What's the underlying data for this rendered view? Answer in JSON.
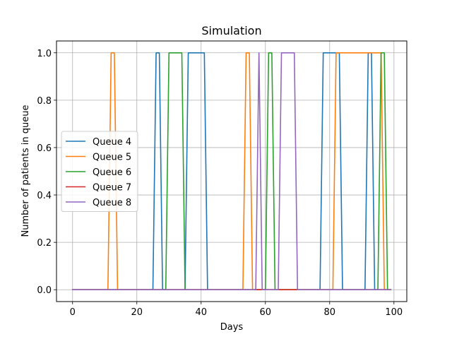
{
  "chart_data": {
    "type": "line",
    "title": "Simulation",
    "xlabel": "Days",
    "ylabel": "Number of patients in queue",
    "xlim": [
      -5,
      104
    ],
    "ylim": [
      -0.05,
      1.05
    ],
    "xticks": [
      0,
      20,
      40,
      60,
      80,
      100
    ],
    "yticks": [
      0.0,
      0.2,
      0.4,
      0.6,
      0.8,
      1.0
    ],
    "xtick_labels": [
      "0",
      "20",
      "40",
      "60",
      "80",
      "100"
    ],
    "ytick_labels": [
      "0.0",
      "0.2",
      "0.4",
      "0.6",
      "0.8",
      "1.0"
    ],
    "grid": true,
    "legend_position": "center-left",
    "series": [
      {
        "name": "Queue 4",
        "color": "#1f77b4",
        "x": [
          0,
          25,
          26,
          27,
          28,
          35,
          36,
          41,
          42,
          77,
          78,
          82,
          83,
          84,
          91,
          92,
          93,
          94,
          99
        ],
        "y": [
          0,
          0,
          1,
          1,
          0,
          0,
          1,
          1,
          0,
          0,
          1,
          1,
          1,
          0,
          0,
          1,
          1,
          0,
          0
        ]
      },
      {
        "name": "Queue 5",
        "color": "#ff7f0e",
        "x": [
          0,
          11,
          12,
          13,
          14,
          53,
          54,
          55,
          56,
          81,
          82,
          96,
          97,
          99
        ],
        "y": [
          0,
          0,
          1,
          1,
          0,
          0,
          1,
          1,
          0,
          0,
          1,
          1,
          0,
          0
        ]
      },
      {
        "name": "Queue 6",
        "color": "#2ca02c",
        "x": [
          0,
          29,
          30,
          33,
          34,
          35,
          60,
          61,
          62,
          63,
          95,
          96,
          97,
          98,
          99
        ],
        "y": [
          0,
          0,
          1,
          1,
          1,
          0,
          0,
          1,
          1,
          0,
          0,
          1,
          1,
          0,
          0
        ]
      },
      {
        "name": "Queue 7",
        "color": "#d62728",
        "x": [
          0,
          99
        ],
        "y": [
          0,
          0
        ]
      },
      {
        "name": "Queue 8",
        "color": "#9467bd",
        "x": [
          0,
          57,
          58,
          59,
          64,
          65,
          69,
          70,
          99
        ],
        "y": [
          0,
          0,
          1,
          0,
          0,
          1,
          1,
          0,
          0
        ]
      }
    ]
  }
}
